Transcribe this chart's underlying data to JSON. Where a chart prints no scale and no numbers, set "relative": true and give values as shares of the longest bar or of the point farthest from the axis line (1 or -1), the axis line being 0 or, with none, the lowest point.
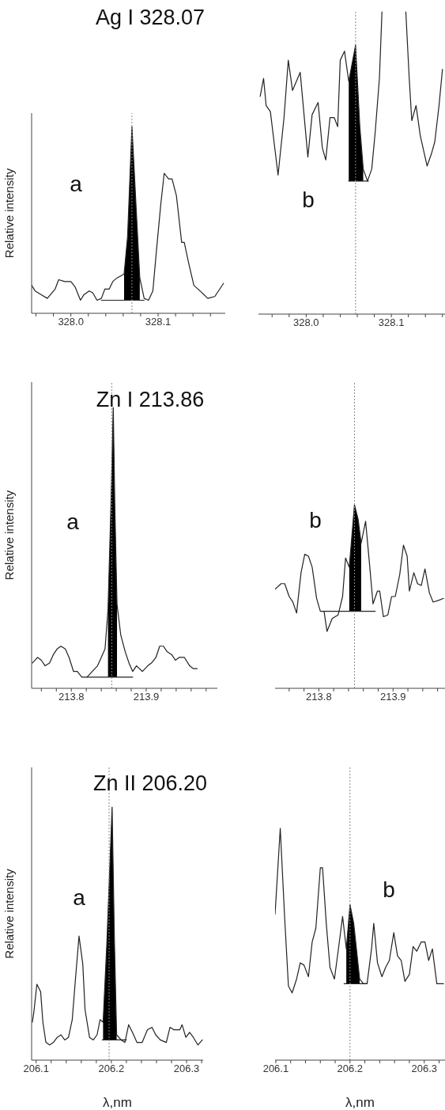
{
  "chart_data": [
    {
      "type": "line",
      "title": "Ag I 328.07",
      "ylabel": "Relative intensity",
      "relative": true,
      "tick_labels": "x",
      "xlim": [
        327.955,
        328.177
      ],
      "xticks": [
        {
          "value": 327.96,
          "label": null
        },
        {
          "value": 327.98,
          "label": null
        },
        {
          "value": 328.0,
          "label": "328.0"
        },
        {
          "value": 328.02,
          "label": null
        },
        {
          "value": 328.04,
          "label": null
        },
        {
          "value": 328.06,
          "label": null
        },
        {
          "value": 328.08,
          "label": null
        },
        328.1,
        {
          "value": 328.12,
          "label": null
        },
        {
          "value": 328.14,
          "label": null
        },
        {
          "value": 328.16,
          "label": null
        }
      ],
      "annotations": [
        "a"
      ],
      "ref_lines": [
        {
          "axis": "x",
          "value": 328.07,
          "color": "#888888",
          "line_style": "dotted"
        }
      ],
      "series": [
        {
          "type": "line",
          "color": "#222222",
          "x": [
            327.955,
            327.959,
            327.966,
            327.973,
            327.982,
            327.986,
            327.993,
            328.0,
            328.005,
            328.011,
            328.015,
            328.021,
            328.025,
            328.03,
            328.035,
            328.039,
            328.044,
            328.048,
            328.053,
            328.061,
            328.065,
            328.07,
            328.075,
            328.079,
            328.084,
            328.089,
            328.094,
            328.098,
            328.103,
            328.107,
            328.112,
            328.116,
            328.121,
            328.127,
            328.13,
            328.135,
            328.141,
            328.148,
            328.157,
            328.165,
            328.175
          ],
          "values": [
            0.15,
            0.12,
            0.1,
            0.08,
            0.13,
            0.18,
            0.17,
            0.17,
            0.14,
            0.07,
            0.1,
            0.12,
            0.11,
            0.07,
            0.08,
            0.13,
            0.13,
            0.17,
            0.19,
            0.21,
            0.41,
            1,
            0.55,
            0.19,
            0.08,
            0.07,
            0.12,
            0.33,
            0.58,
            0.75,
            0.72,
            0.72,
            0.63,
            0.38,
            0.38,
            0.27,
            0.15,
            0.12,
            0.08,
            0.09,
            0.16
          ],
          "lower": [
            null,
            null,
            null,
            null,
            null,
            null,
            null,
            null,
            null,
            null,
            null,
            null,
            null,
            null,
            null,
            null,
            null,
            null,
            null,
            0.07,
            0.07,
            0.07,
            0.07,
            0.07,
            null,
            null,
            null,
            null,
            null,
            null,
            null,
            null,
            null,
            null,
            null,
            null,
            null,
            null,
            null,
            null,
            null
          ],
          "upper": [
            null,
            null,
            null,
            null,
            null,
            null,
            null,
            null,
            null,
            null,
            null,
            null,
            null,
            null,
            null,
            null,
            null,
            null,
            null,
            0.21,
            0.41,
            1,
            0.55,
            0.19,
            null,
            null,
            null,
            null,
            null,
            null,
            null,
            null,
            null,
            null,
            null,
            null,
            null,
            null,
            null,
            null,
            null
          ]
        },
        {
          "type": "line",
          "color": "#222222",
          "x": [
            328.035,
            328.084
          ],
          "values": [
            0.07,
            0.07
          ]
        }
      ]
    },
    {
      "type": "line",
      "relative": true,
      "tick_labels": "x",
      "xlim": [
        327.944,
        328.163
      ],
      "xticks": [
        {
          "value": 327.96,
          "label": null
        },
        {
          "value": 327.98,
          "label": null
        },
        {
          "value": 328.0,
          "label": "328.0"
        },
        {
          "value": 328.02,
          "label": null
        },
        {
          "value": 328.04,
          "label": null
        },
        {
          "value": 328.06,
          "label": null
        },
        {
          "value": 328.08,
          "label": null
        },
        328.1,
        {
          "value": 328.12,
          "label": null
        },
        {
          "value": 328.14,
          "label": null
        },
        {
          "value": 328.16,
          "label": null
        }
      ],
      "annotations": [
        "b"
      ],
      "ref_lines": [
        {
          "axis": "x",
          "value": 328.058,
          "color": "#888888",
          "line_style": "dotted"
        }
      ],
      "series": [
        {
          "type": "line",
          "color": "#222222",
          "x": [
            327.946,
            327.95,
            327.953,
            327.958,
            327.967,
            327.974,
            327.979,
            327.984,
            327.993,
            328.002,
            328.007,
            328.014,
            328.019,
            328.023,
            328.028,
            328.033,
            328.037,
            328.04,
            328.045,
            328.05,
            328.054,
            328.058,
            328.063,
            328.067,
            328.072,
            328.077,
            328.081,
            328.086,
            328.089,
            328.1,
            328.117,
            328.121,
            328.124,
            328.129,
            328.134,
            328.142,
            328.147,
            328.151,
            328.156,
            328.16
          ],
          "values": [
            0.72,
            0.78,
            0.69,
            0.67,
            0.46,
            0.65,
            0.84,
            0.74,
            0.8,
            0.52,
            0.66,
            0.7,
            0.55,
            0.51,
            0.65,
            0.65,
            0.62,
            0.84,
            0.87,
            0.77,
            0.83,
            0.89,
            0.62,
            0.48,
            0.44,
            0.48,
            0.6,
            0.78,
            1,
            null,
            1,
            0.78,
            0.64,
            0.69,
            0.59,
            0.49,
            0.53,
            0.57,
            0.69,
            0.81
          ],
          "lower": [
            null,
            null,
            null,
            null,
            null,
            null,
            null,
            null,
            null,
            null,
            null,
            null,
            null,
            null,
            null,
            null,
            null,
            null,
            null,
            0.44,
            0.44,
            0.44,
            0.44,
            0.44,
            null,
            null,
            null,
            null,
            null,
            null,
            null,
            null,
            null,
            null,
            null,
            null,
            null,
            null,
            null,
            null
          ],
          "upper": [
            null,
            null,
            null,
            null,
            null,
            null,
            null,
            null,
            null,
            null,
            null,
            null,
            null,
            null,
            null,
            null,
            null,
            null,
            null,
            0.77,
            0.83,
            0.89,
            0.62,
            0.48,
            null,
            null,
            null,
            null,
            null,
            null,
            null,
            null,
            null,
            null,
            null,
            null,
            null,
            null,
            null,
            null
          ]
        },
        {
          "type": "line",
          "color": "#222222",
          "x": [
            328.05,
            328.073
          ],
          "values": [
            0.44,
            0.44
          ]
        }
      ]
    },
    {
      "type": "line",
      "title": "Zn I 213.86",
      "ylabel": "Relative intensity",
      "relative": true,
      "tick_labels": "x",
      "xlim": [
        213.747,
        213.995
      ],
      "xticks": [
        {
          "value": 213.76,
          "label": null
        },
        {
          "value": 213.78,
          "label": null
        },
        213.8,
        {
          "value": 213.82,
          "label": null
        },
        {
          "value": 213.84,
          "label": null
        },
        {
          "value": 213.86,
          "label": null
        },
        {
          "value": 213.88,
          "label": null
        },
        213.9,
        {
          "value": 213.92,
          "label": null
        },
        {
          "value": 213.94,
          "label": null
        },
        {
          "value": 213.96,
          "label": null
        },
        {
          "value": 213.98,
          "label": null
        }
      ],
      "annotations": [
        "a"
      ],
      "ref_lines": [
        {
          "axis": "x",
          "value": 213.854,
          "color": "#888888",
          "line_style": "dotted"
        }
      ],
      "series": [
        {
          "type": "line",
          "color": "#222222",
          "x": [
            213.748,
            213.755,
            213.76,
            213.765,
            213.771,
            213.776,
            213.781,
            213.786,
            213.792,
            213.797,
            213.803,
            213.808,
            213.814,
            213.821,
            213.828,
            213.835,
            213.84,
            213.845,
            213.849,
            213.853,
            213.856,
            213.858,
            213.861,
            213.866,
            213.872,
            213.877,
            213.882,
            213.887,
            213.895,
            213.902,
            213.907,
            213.913,
            213.918,
            213.923,
            213.928,
            213.934,
            213.939,
            213.944,
            213.951,
            213.958,
            213.963,
            213.968
          ],
          "values": [
            0.09,
            0.11,
            0.1,
            0.08,
            0.09,
            0.12,
            0.14,
            0.15,
            0.14,
            0.11,
            0.06,
            0.06,
            0.04,
            0.04,
            0.06,
            0.08,
            0.11,
            0.14,
            0.28,
            0.66,
            1,
            0.66,
            0.3,
            0.19,
            0.13,
            0.09,
            0.06,
            0.08,
            0.06,
            0.08,
            0.09,
            0.11,
            0.15,
            0.15,
            0.13,
            0.12,
            0.1,
            0.11,
            0.11,
            0.08,
            0.07,
            0.07
          ],
          "lower": [
            null,
            null,
            null,
            null,
            null,
            null,
            null,
            null,
            null,
            null,
            null,
            null,
            null,
            null,
            null,
            null,
            null,
            null,
            0.04,
            0.04,
            0.04,
            0.04,
            0.04,
            null,
            null,
            null,
            null,
            null,
            null,
            null,
            null,
            null,
            null,
            null,
            null,
            null,
            null,
            null,
            null,
            null,
            null,
            null
          ],
          "upper": [
            null,
            null,
            null,
            null,
            null,
            null,
            null,
            null,
            null,
            null,
            null,
            null,
            null,
            null,
            null,
            null,
            null,
            null,
            0.28,
            0.66,
            1,
            0.66,
            0.3,
            null,
            null,
            null,
            null,
            null,
            null,
            null,
            null,
            null,
            null,
            null,
            null,
            null,
            null,
            null,
            null,
            null,
            null,
            null
          ]
        },
        {
          "type": "line",
          "color": "#222222",
          "x": [
            213.821,
            213.882
          ],
          "values": [
            0.04,
            0.04
          ]
        }
      ]
    },
    {
      "type": "line",
      "relative": true,
      "tick_labels": "x",
      "xlim": [
        213.741,
        213.97
      ],
      "xticks": [
        {
          "value": 213.76,
          "label": null
        },
        {
          "value": 213.78,
          "label": null
        },
        213.8,
        {
          "value": 213.82,
          "label": null
        },
        {
          "value": 213.84,
          "label": null
        },
        {
          "value": 213.86,
          "label": null
        },
        {
          "value": 213.88,
          "label": null
        },
        213.9,
        {
          "value": 213.92,
          "label": null
        },
        {
          "value": 213.94,
          "label": null
        },
        {
          "value": 213.96,
          "label": null
        }
      ],
      "annotations": [
        "b"
      ],
      "ref_lines": [
        {
          "axis": "x",
          "value": 213.848,
          "color": "#888888",
          "line_style": "dotted"
        }
      ],
      "series": [
        {
          "type": "line",
          "color": "#222222",
          "x": [
            213.741,
            213.749,
            213.754,
            213.76,
            213.765,
            213.77,
            213.776,
            213.781,
            213.786,
            213.791,
            213.797,
            213.802,
            213.807,
            213.811,
            213.818,
            213.826,
            213.832,
            213.836,
            213.841,
            213.848,
            213.853,
            213.857,
            213.863,
            213.868,
            213.873,
            213.879,
            213.882,
            213.887,
            213.893,
            213.898,
            213.903,
            213.909,
            213.914,
            213.919,
            213.922,
            213.928,
            213.933,
            213.938,
            213.943,
            213.949,
            213.954,
            213.962,
            213.968
          ],
          "values": [
            0.54,
            0.57,
            0.57,
            0.5,
            0.47,
            0.41,
            0.63,
            0.73,
            0.72,
            0.66,
            0.49,
            0.42,
            0.42,
            0.31,
            0.38,
            0.4,
            0.5,
            0.71,
            0.66,
            1,
            0.92,
            0.79,
            0.91,
            0.69,
            0.46,
            0.53,
            0.53,
            0.39,
            0.4,
            0.5,
            0.5,
            0.62,
            0.78,
            0.72,
            0.53,
            0.63,
            0.57,
            0.56,
            0.65,
            0.52,
            0.47,
            0.48,
            0.49
          ],
          "lower": [
            null,
            null,
            null,
            null,
            null,
            null,
            null,
            null,
            null,
            null,
            null,
            null,
            null,
            null,
            null,
            null,
            null,
            null,
            0.42,
            0.42,
            0.42,
            0.42,
            null,
            null,
            null,
            null,
            null,
            null,
            null,
            null,
            null,
            null,
            null,
            null,
            null,
            null,
            null,
            null,
            null,
            null,
            null,
            null,
            null
          ],
          "upper": [
            null,
            null,
            null,
            null,
            null,
            null,
            null,
            null,
            null,
            null,
            null,
            null,
            null,
            null,
            null,
            null,
            null,
            null,
            0.66,
            1,
            0.92,
            0.79,
            null,
            null,
            null,
            null,
            null,
            null,
            null,
            null,
            null,
            null,
            null,
            null,
            null,
            null,
            null,
            null,
            null,
            null,
            null,
            null,
            null
          ]
        },
        {
          "type": "line",
          "color": "#222222",
          "x": [
            213.807,
            213.876
          ],
          "values": [
            0.42,
            0.42
          ]
        }
      ]
    },
    {
      "type": "line",
      "title": "Zn II 206.20",
      "ylabel": "Relative intensity",
      "xlabel": "λ,nm",
      "relative": true,
      "tick_labels": "x",
      "xlim": [
        206.094,
        206.322
      ],
      "xticks": [
        206.1,
        {
          "value": 206.12,
          "label": null
        },
        {
          "value": 206.14,
          "label": null
        },
        {
          "value": 206.16,
          "label": null
        },
        {
          "value": 206.18,
          "label": null
        },
        206.2,
        {
          "value": 206.22,
          "label": null
        },
        {
          "value": 206.24,
          "label": null
        },
        {
          "value": 206.26,
          "label": null
        },
        {
          "value": 206.28,
          "label": null
        },
        206.3,
        {
          "value": 206.32,
          "label": null
        }
      ],
      "annotations": [
        "a"
      ],
      "ref_lines": [
        {
          "axis": "x",
          "value": 206.197,
          "color": "#888888",
          "line_style": "dotted"
        }
      ],
      "series": [
        {
          "type": "line",
          "color": "#222222",
          "x": [
            206.095,
            206.097,
            206.101,
            206.106,
            206.109,
            206.113,
            206.118,
            206.123,
            206.128,
            206.133,
            206.138,
            206.143,
            206.148,
            206.152,
            206.157,
            206.162,
            206.165,
            206.171,
            206.176,
            206.181,
            206.185,
            206.189,
            206.194,
            206.201,
            206.204,
            206.207,
            206.213,
            206.218,
            206.223,
            206.228,
            206.234,
            206.241,
            206.248,
            206.254,
            206.259,
            206.265,
            206.273,
            206.278,
            206.283,
            206.291,
            206.294,
            206.299,
            206.304,
            206.309,
            206.315,
            206.321
          ],
          "values": [
            0.15,
            0.19,
            0.3,
            0.27,
            0.15,
            0.07,
            0.06,
            0.07,
            0.09,
            0.1,
            0.08,
            0.09,
            0.16,
            0.31,
            0.49,
            0.38,
            0.2,
            0.09,
            0.08,
            0.1,
            0.16,
            0.15,
            0.46,
            1,
            0.48,
            0.1,
            0.08,
            0.07,
            0.14,
            0.11,
            0.07,
            0.07,
            0.12,
            0.13,
            0.1,
            0.08,
            0.07,
            0.13,
            0.12,
            0.12,
            0.14,
            0.09,
            0.11,
            0.09,
            0.06,
            0.08
          ],
          "lower": [
            null,
            null,
            null,
            null,
            null,
            null,
            null,
            null,
            null,
            null,
            null,
            null,
            null,
            null,
            null,
            null,
            null,
            null,
            null,
            null,
            null,
            0.08,
            0.08,
            0.08,
            0.08,
            0.08,
            null,
            null,
            null,
            null,
            null,
            null,
            null,
            null,
            null,
            null,
            null,
            null,
            null,
            null,
            null,
            null,
            null,
            null,
            null,
            null
          ],
          "upper": [
            null,
            null,
            null,
            null,
            null,
            null,
            null,
            null,
            null,
            null,
            null,
            null,
            null,
            null,
            null,
            null,
            null,
            null,
            null,
            null,
            null,
            0.15,
            0.46,
            1,
            0.48,
            0.1,
            null,
            null,
            null,
            null,
            null,
            null,
            null,
            null,
            null,
            null,
            null,
            null,
            null,
            null,
            null,
            null,
            null,
            null,
            null,
            null
          ]
        },
        {
          "type": "line",
          "color": "#222222",
          "x": [
            206.188,
            206.22
          ],
          "values": [
            0.08,
            0.08
          ]
        }
      ]
    },
    {
      "type": "line",
      "xlabel": "λ,nm",
      "relative": true,
      "tick_labels": "x",
      "xlim": [
        206.099,
        206.328
      ],
      "xticks": [
        206.1,
        {
          "value": 206.12,
          "label": null
        },
        {
          "value": 206.14,
          "label": null
        },
        {
          "value": 206.16,
          "label": null
        },
        {
          "value": 206.18,
          "label": null
        },
        206.2,
        {
          "value": 206.22,
          "label": null
        },
        {
          "value": 206.24,
          "label": null
        },
        {
          "value": 206.26,
          "label": null
        },
        {
          "value": 206.28,
          "label": null
        },
        206.3,
        {
          "value": 206.32,
          "label": null
        }
      ],
      "annotations": [
        "b"
      ],
      "ref_lines": [
        {
          "axis": "x",
          "value": 206.2,
          "color": "#888888",
          "line_style": "dotted"
        }
      ],
      "series": [
        {
          "type": "line",
          "color": "#222222",
          "x": [
            206.099,
            206.106,
            206.112,
            206.117,
            206.122,
            206.128,
            206.133,
            206.138,
            206.144,
            206.149,
            206.154,
            206.16,
            206.163,
            206.168,
            206.173,
            206.179,
            206.184,
            206.19,
            206.195,
            206.2,
            206.205,
            206.213,
            206.218,
            206.223,
            206.229,
            206.232,
            206.237,
            206.243,
            206.248,
            206.253,
            206.259,
            206.264,
            206.269,
            206.274,
            206.28,
            206.285,
            206.29,
            206.296,
            206.301,
            206.306,
            206.311,
            206.317,
            206.326
          ],
          "values": [
            0.63,
            1,
            0.61,
            0.32,
            0.29,
            0.35,
            0.42,
            0.41,
            0.36,
            0.51,
            0.57,
            0.83,
            0.83,
            0.59,
            0.4,
            0.35,
            0.47,
            0.62,
            0.48,
            0.67,
            0.59,
            0.35,
            0.33,
            0.33,
            0.48,
            0.59,
            0.42,
            0.36,
            0.4,
            0.43,
            0.55,
            0.45,
            0.43,
            0.34,
            0.37,
            0.49,
            0.47,
            0.51,
            0.51,
            0.43,
            0.48,
            0.33,
            0.33
          ],
          "lower": [
            null,
            null,
            null,
            null,
            null,
            null,
            null,
            null,
            null,
            null,
            null,
            null,
            null,
            null,
            null,
            null,
            null,
            null,
            0.33,
            0.33,
            0.33,
            0.33,
            null,
            null,
            null,
            null,
            null,
            null,
            null,
            null,
            null,
            null,
            null,
            null,
            null,
            null,
            null,
            null,
            null,
            null,
            null,
            null,
            null
          ],
          "upper": [
            null,
            null,
            null,
            null,
            null,
            null,
            null,
            null,
            null,
            null,
            null,
            null,
            null,
            null,
            null,
            null,
            null,
            null,
            0.48,
            0.67,
            0.59,
            0.35,
            null,
            null,
            null,
            null,
            null,
            null,
            null,
            null,
            null,
            null,
            null,
            null,
            null,
            null,
            null,
            null,
            null,
            null,
            null,
            null,
            null
          ]
        },
        {
          "type": "line",
          "color": "#222222",
          "x": [
            206.192,
            206.223
          ],
          "values": [
            0.33,
            0.33
          ]
        }
      ]
    }
  ]
}
